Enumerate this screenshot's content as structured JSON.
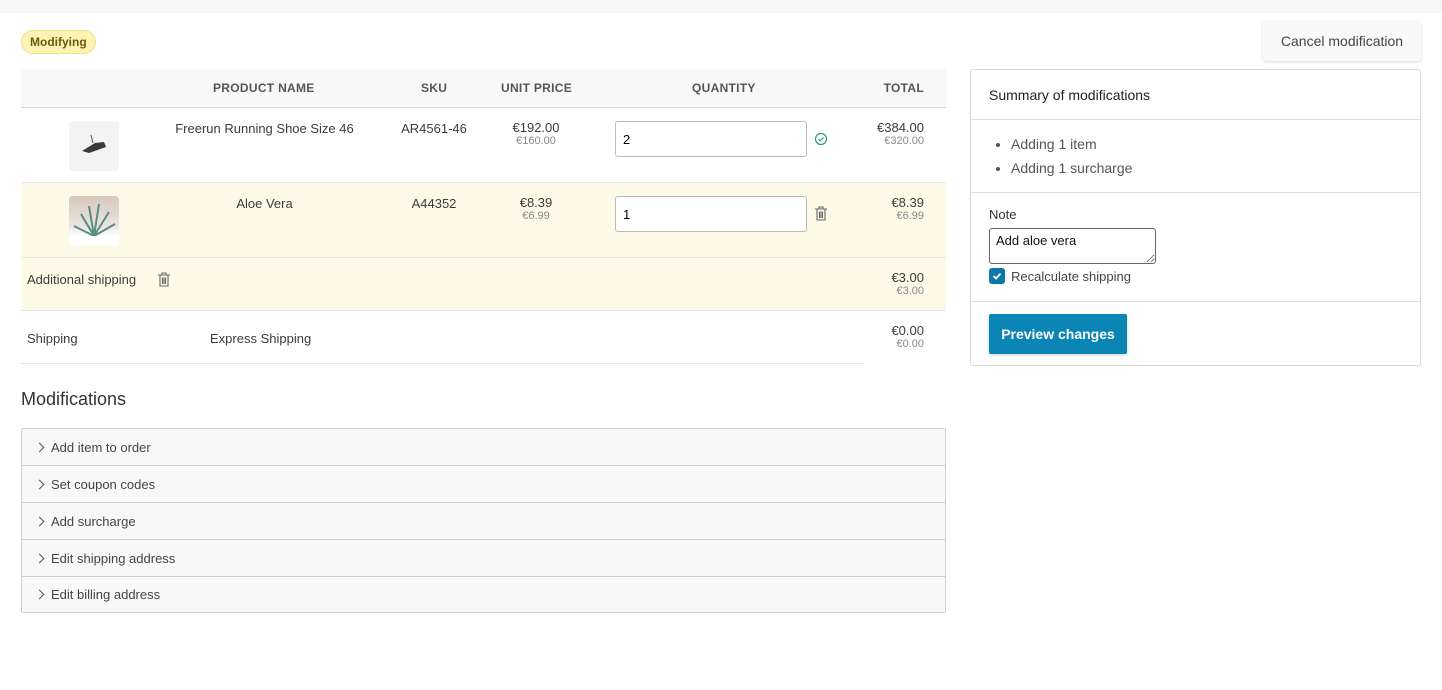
{
  "status_badge": "Modifying",
  "cancel_label": "Cancel modification",
  "table": {
    "headers": {
      "product_name": "PRODUCT NAME",
      "sku": "SKU",
      "unit_price": "UNIT PRICE",
      "quantity": "QUANTITY",
      "total": "TOTAL"
    },
    "lines": [
      {
        "name": "Freerun Running Shoe Size 46",
        "sku": "AR4561-46",
        "unit_price": "€192.00",
        "unit_price_net": "€160.00",
        "quantity": "2",
        "total": "€384.00",
        "total_net": "€320.00",
        "action_icon": "check-circle-icon"
      },
      {
        "name": "Aloe Vera",
        "sku": "A44352",
        "unit_price": "€8.39",
        "unit_price_net": "€6.99",
        "quantity": "1",
        "total": "€8.39",
        "total_net": "€6.99",
        "action_icon": "trash-icon"
      }
    ],
    "surcharge": {
      "label": "Additional shipping",
      "total": "€3.00",
      "total_net": "€3.00"
    },
    "shipping": {
      "label": "Shipping",
      "method": "Express Shipping",
      "total": "€0.00",
      "total_net": "€0.00"
    }
  },
  "modifications": {
    "title": "Modifications",
    "items": [
      "Add item to order",
      "Set coupon codes",
      "Add surcharge",
      "Edit shipping address",
      "Edit billing address"
    ]
  },
  "summary": {
    "title": "Summary of modifications",
    "items": [
      "Adding 1 item",
      "Adding 1 surcharge"
    ],
    "note_label": "Note",
    "note_value": "Add aloe vera",
    "recalculate_label": "Recalculate shipping",
    "recalculate_checked": true,
    "preview_label": "Preview changes"
  },
  "colors": {
    "accent": "#0a85b6",
    "highlight_row": "#fdfae8",
    "badge": "#fcf3b5",
    "success": "#2f9e6e"
  }
}
